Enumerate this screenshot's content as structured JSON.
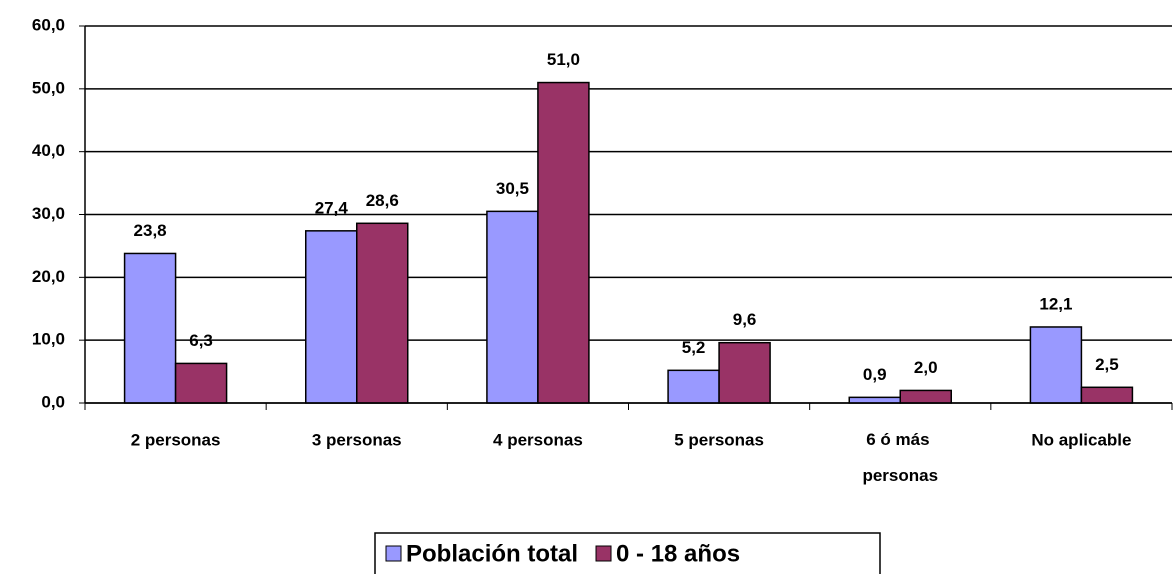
{
  "chart_data": {
    "type": "bar",
    "categories": [
      "2 personas",
      "3 personas",
      "4 personas",
      "5 personas",
      "6 ó más personas",
      "No aplicable"
    ],
    "series": [
      {
        "name": "Población total",
        "color": "#9999ff",
        "values": [
          23.8,
          27.4,
          30.5,
          5.2,
          0.9,
          12.1
        ],
        "value_labels": [
          "23,8",
          "27,4",
          "30,5",
          "5,2",
          "0,9",
          "12,1"
        ]
      },
      {
        "name": "0 - 18 años",
        "color": "#993366",
        "values": [
          6.3,
          28.6,
          51.0,
          9.6,
          2.0,
          2.5
        ],
        "value_labels": [
          "6,3",
          "28,6",
          "51,0",
          "9,6",
          "2,0",
          "2,5"
        ]
      }
    ],
    "ylim": [
      0,
      60
    ],
    "yticks": [
      {
        "value": 0,
        "label": "0,0"
      },
      {
        "value": 10,
        "label": "10,0"
      },
      {
        "value": 20,
        "label": "20,0"
      },
      {
        "value": 30,
        "label": "30,0"
      },
      {
        "value": 40,
        "label": "40,0"
      },
      {
        "value": 50,
        "label": "50,0"
      },
      {
        "value": 60,
        "label": "60,0"
      }
    ],
    "grid": true,
    "legend": "bottom"
  }
}
